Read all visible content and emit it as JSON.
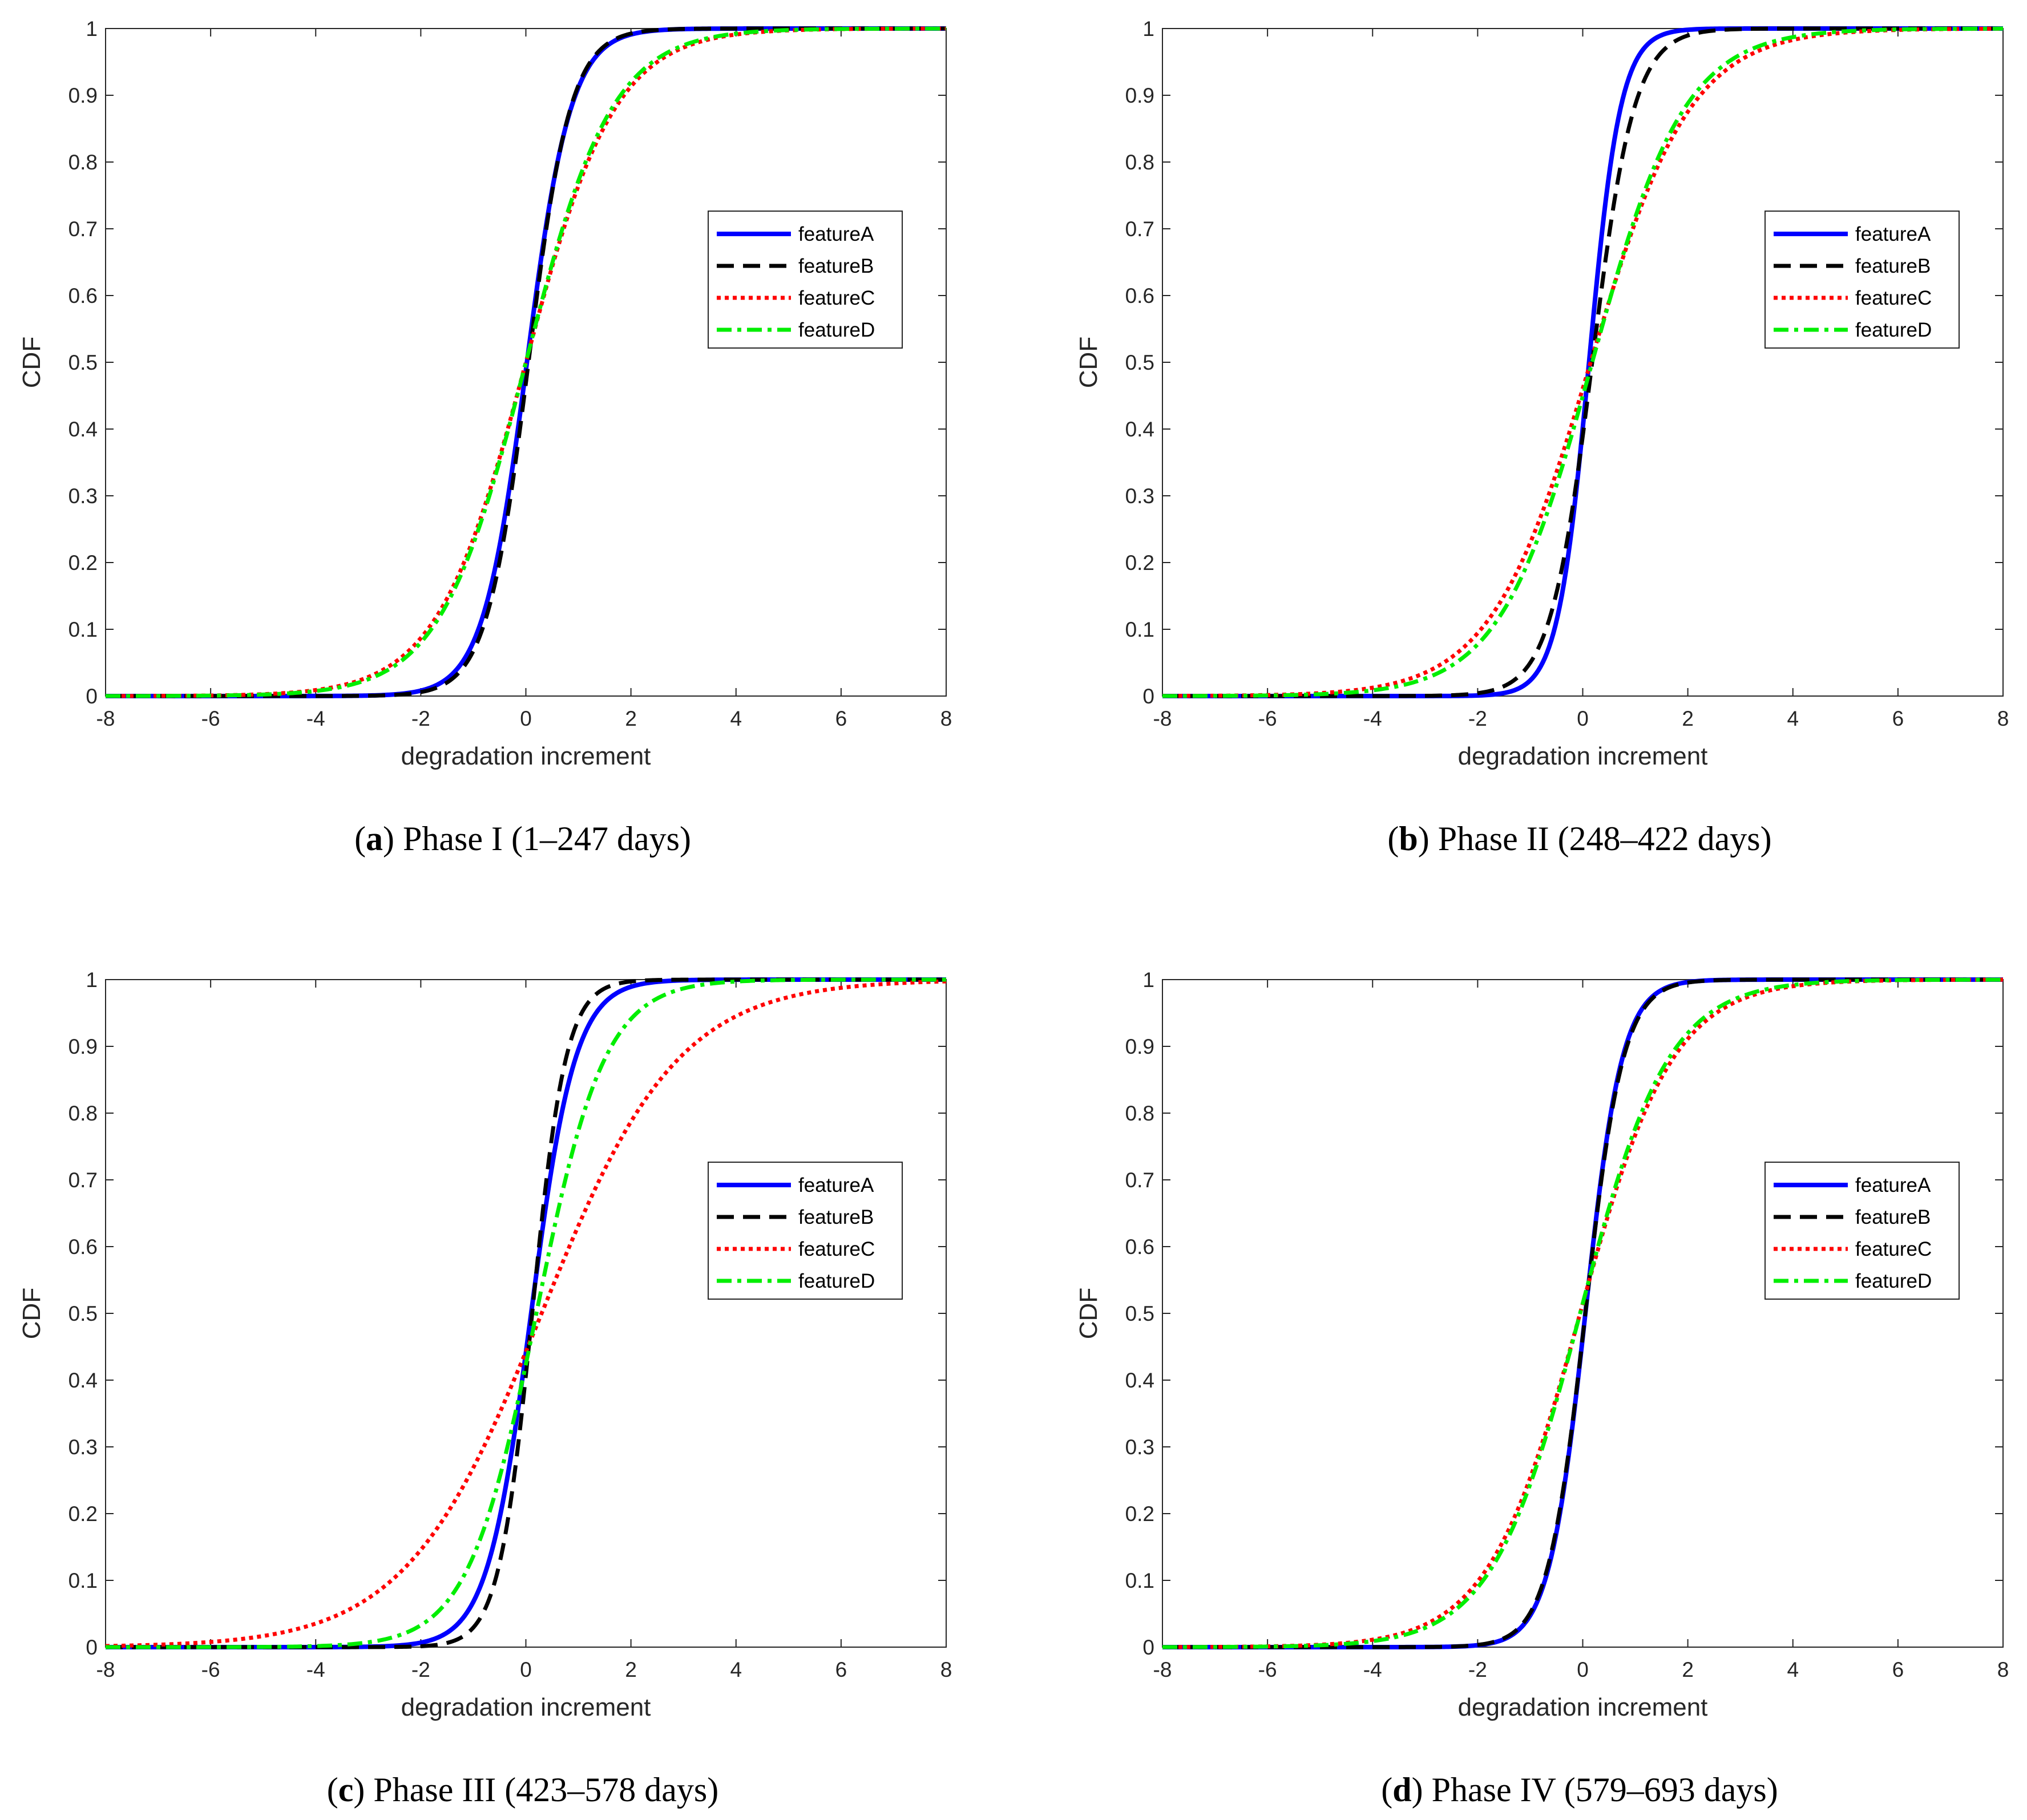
{
  "chart_data": [
    {
      "type": "line",
      "panel": "a",
      "caption_letter": "a",
      "caption_rest": " Phase I (1–247 days)",
      "xlabel": "degradation increment",
      "ylabel": "CDF",
      "xlim": [
        -8,
        8
      ],
      "ylim": [
        0,
        1
      ],
      "xticks": [
        "-8",
        "-6",
        "-4",
        "-2",
        "0",
        "2",
        "4",
        "6",
        "8"
      ],
      "yticks": [
        "0",
        "0.1",
        "0.2",
        "0.3",
        "0.4",
        "0.5",
        "0.6",
        "0.7",
        "0.8",
        "0.9",
        "1"
      ],
      "legend": "right-middle",
      "series": [
        {
          "name": "featureA",
          "color": "#0000ff",
          "style": "solid",
          "center": 0.02,
          "scale": 0.42
        },
        {
          "name": "featureB",
          "color": "#000000",
          "style": "dashed",
          "center": 0.05,
          "scale": 0.4
        },
        {
          "name": "featureC",
          "color": "#ff0000",
          "style": "dotted",
          "center": 0.0,
          "scale": 0.85
        },
        {
          "name": "featureD",
          "color": "#00ee00",
          "style": "dashdot",
          "center": 0.0,
          "scale": 0.82
        }
      ]
    },
    {
      "type": "line",
      "panel": "b",
      "caption_letter": "b",
      "caption_rest": " Phase II (248–422 days)",
      "xlabel": "degradation increment",
      "ylabel": "CDF",
      "xlim": [
        -8,
        8
      ],
      "ylim": [
        0,
        1
      ],
      "xticks": [
        "-8",
        "-6",
        "-4",
        "-2",
        "0",
        "2",
        "4",
        "6",
        "8"
      ],
      "yticks": [
        "0",
        "0.1",
        "0.2",
        "0.3",
        "0.4",
        "0.5",
        "0.6",
        "0.7",
        "0.8",
        "0.9",
        "1"
      ],
      "legend": "right-middle",
      "series": [
        {
          "name": "featureA",
          "color": "#0000ff",
          "style": "solid",
          "center": 0.12,
          "scale": 0.3
        },
        {
          "name": "featureB",
          "color": "#000000",
          "style": "dashed",
          "center": 0.18,
          "scale": 0.4
        },
        {
          "name": "featureC",
          "color": "#ff0000",
          "style": "dotted",
          "center": 0.15,
          "scale": 0.95
        },
        {
          "name": "featureD",
          "color": "#00ee00",
          "style": "dashdot",
          "center": 0.18,
          "scale": 0.88
        }
      ]
    },
    {
      "type": "line",
      "panel": "c",
      "caption_letter": "c",
      "caption_rest": " Phase III (423–578 days)",
      "xlabel": "degradation increment",
      "ylabel": "CDF",
      "xlim": [
        -8,
        8
      ],
      "ylim": [
        0,
        1
      ],
      "xticks": [
        "-8",
        "-6",
        "-4",
        "-2",
        "0",
        "2",
        "4",
        "6",
        "8"
      ],
      "yticks": [
        "0",
        "0.1",
        "0.2",
        "0.3",
        "0.4",
        "0.5",
        "0.6",
        "0.7",
        "0.8",
        "0.9",
        "1"
      ],
      "legend": "right-middle",
      "series": [
        {
          "name": "featureA",
          "color": "#0000ff",
          "style": "solid",
          "center": 0.1,
          "scale": 0.42
        },
        {
          "name": "featureB",
          "color": "#000000",
          "style": "dashed",
          "center": 0.12,
          "scale": 0.32
        },
        {
          "name": "featureC",
          "color": "#ff0000",
          "style": "dotted",
          "center": 0.3,
          "scale": 1.3
        },
        {
          "name": "featureD",
          "color": "#00ee00",
          "style": "dashdot",
          "center": 0.2,
          "scale": 0.65
        }
      ]
    },
    {
      "type": "line",
      "panel": "d",
      "caption_letter": "d",
      "caption_rest": " Phase IV (579–693 days)",
      "xlabel": "degradation increment",
      "ylabel": "CDF",
      "xlim": [
        -8,
        8
      ],
      "ylim": [
        0,
        1
      ],
      "xticks": [
        "-8",
        "-6",
        "-4",
        "-2",
        "0",
        "2",
        "4",
        "6",
        "8"
      ],
      "yticks": [
        "0",
        "0.1",
        "0.2",
        "0.3",
        "0.4",
        "0.5",
        "0.6",
        "0.7",
        "0.8",
        "0.9",
        "1"
      ],
      "legend": "right-middle",
      "series": [
        {
          "name": "featureA",
          "color": "#0000ff",
          "style": "solid",
          "center": 0.05,
          "scale": 0.35
        },
        {
          "name": "featureB",
          "color": "#000000",
          "style": "dashed",
          "center": 0.05,
          "scale": 0.36
        },
        {
          "name": "featureC",
          "color": "#ff0000",
          "style": "dotted",
          "center": -0.05,
          "scale": 0.88
        },
        {
          "name": "featureD",
          "color": "#00ee00",
          "style": "dashdot",
          "center": -0.05,
          "scale": 0.84
        }
      ]
    }
  ]
}
